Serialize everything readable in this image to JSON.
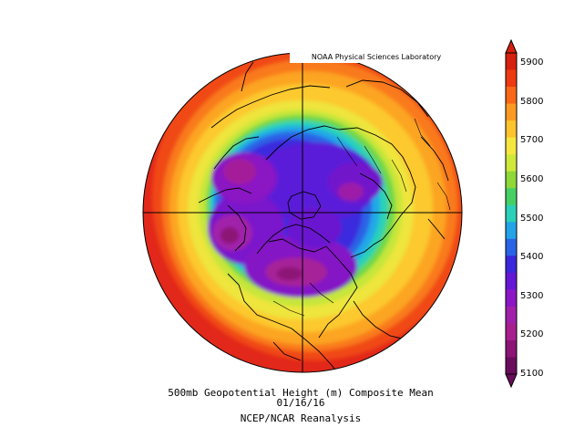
{
  "credit": "NOAA Physical Sciences Laboratory",
  "caption": {
    "title": "500mb Geopotential Height (m) Composite Mean",
    "date": "01/16/16",
    "source": "NCEP/NCAR Reanalysis"
  },
  "colorbar": {
    "labels": [
      "5900",
      "5800",
      "5700",
      "5600",
      "5500",
      "5400",
      "5300",
      "5200",
      "5100"
    ],
    "colors": [
      "#d62010",
      "#ee3a10",
      "#f86818",
      "#fb9a22",
      "#fcc42e",
      "#f6e640",
      "#d0e83a",
      "#8ed83a",
      "#46d064",
      "#2ad0b8",
      "#22a4e6",
      "#2a64e6",
      "#3a28dc",
      "#6418d6",
      "#8c16c6",
      "#a020aa",
      "#a8208e",
      "#8c1474",
      "#6a0c5c"
    ]
  },
  "map": {
    "projection": "north-polar-stereographic",
    "field": "500mb-geopotential-height",
    "height_levels": [
      5100,
      5200,
      5300,
      5400,
      5500,
      5600,
      5700,
      5800,
      5900
    ]
  }
}
